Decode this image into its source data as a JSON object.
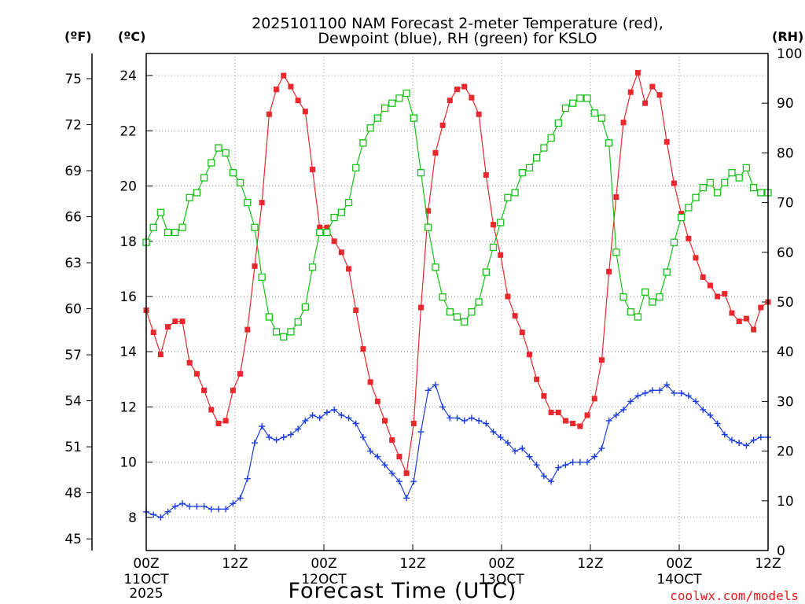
{
  "colors": {
    "temperature": "#e8282c",
    "dewpoint": "#1f3fdf",
    "rh": "#18c018",
    "grid": "#9a9a9a",
    "credit": "#e31a1c"
  },
  "chart_data": {
    "type": "line",
    "title_line1": "2025101100 NAM Forecast 2-meter Temperature (red),",
    "title_line2": "Dewpoint (blue), RH (green) for KSLO",
    "xlabel": "Forecast Time (UTC)",
    "credit": "coolwx.com/models",
    "units": {
      "f": "(ºF)",
      "c": "(ºC)",
      "rh": "(RH)"
    },
    "x_hours_range": [
      0,
      84
    ],
    "x_ticks": [
      {
        "hour": 0,
        "label": "00Z",
        "sub1": "11OCT",
        "sub2": "2025"
      },
      {
        "hour": 12,
        "label": "12Z",
        "sub1": "",
        "sub2": ""
      },
      {
        "hour": 24,
        "label": "00Z",
        "sub1": "12OCT",
        "sub2": ""
      },
      {
        "hour": 36,
        "label": "12Z",
        "sub1": "",
        "sub2": ""
      },
      {
        "hour": 48,
        "label": "00Z",
        "sub1": "13OCT",
        "sub2": ""
      },
      {
        "hour": 60,
        "label": "12Z",
        "sub1": "",
        "sub2": ""
      },
      {
        "hour": 72,
        "label": "00Z",
        "sub1": "14OCT",
        "sub2": ""
      },
      {
        "hour": 84,
        "label": "12Z",
        "sub1": "",
        "sub2": ""
      }
    ],
    "y_celsius_range": [
      6.8,
      24.8
    ],
    "y_celsius_ticks": [
      "8",
      "10",
      "12",
      "14",
      "16",
      "18",
      "20",
      "22",
      "24"
    ],
    "y_fahrenheit_ticks": [
      "45",
      "48",
      "51",
      "54",
      "57",
      "60",
      "63",
      "66",
      "69",
      "72",
      "75"
    ],
    "y_rh_range": [
      0,
      100
    ],
    "y_rh_ticks": [
      "0",
      "10",
      "20",
      "30",
      "40",
      "50",
      "60",
      "70",
      "80",
      "90",
      "100"
    ],
    "series": [
      {
        "name": "Temperature (°C)",
        "color": "#e8282c",
        "marker": "filled-square",
        "values": [
          15.5,
          14.7,
          13.9,
          14.9,
          15.1,
          15.1,
          13.6,
          13.2,
          12.6,
          11.9,
          11.4,
          11.5,
          12.6,
          13.2,
          14.8,
          17.1,
          19.4,
          22.6,
          23.5,
          24.0,
          23.6,
          23.1,
          22.7,
          20.6,
          18.5,
          18.5,
          18.0,
          17.6,
          17.0,
          15.5,
          14.1,
          12.9,
          12.2,
          11.5,
          10.8,
          10.2,
          9.6,
          11.4,
          15.6,
          19.1,
          21.2,
          22.2,
          23.1,
          23.5,
          23.6,
          23.2,
          22.6,
          20.4,
          18.6,
          17.5,
          16.0,
          15.3,
          14.7,
          13.9,
          13.0,
          12.4,
          11.8,
          11.8,
          11.5,
          11.4,
          11.3,
          11.7,
          12.3,
          13.7,
          16.9,
          19.6,
          22.3,
          23.4,
          24.1,
          23.0,
          23.6,
          23.3,
          21.6,
          20.1,
          19.0,
          18.1,
          17.4,
          16.7,
          16.4,
          16.0,
          16.1,
          15.4,
          15.1,
          15.2,
          14.8,
          15.6,
          15.8
        ]
      },
      {
        "name": "Dewpoint (°C)",
        "color": "#1f3fdf",
        "marker": "plus",
        "values": [
          8.2,
          8.1,
          8.0,
          8.2,
          8.4,
          8.5,
          8.4,
          8.4,
          8.4,
          8.3,
          8.3,
          8.3,
          8.5,
          8.7,
          9.4,
          10.7,
          11.3,
          10.9,
          10.8,
          10.9,
          11.0,
          11.2,
          11.5,
          11.7,
          11.6,
          11.8,
          11.9,
          11.7,
          11.6,
          11.4,
          10.9,
          10.4,
          10.2,
          9.9,
          9.6,
          9.3,
          8.7,
          9.3,
          11.1,
          12.6,
          12.8,
          12.0,
          11.6,
          11.6,
          11.5,
          11.6,
          11.5,
          11.4,
          11.1,
          10.9,
          10.7,
          10.4,
          10.5,
          10.2,
          9.9,
          9.5,
          9.3,
          9.8,
          9.9,
          10.0,
          10.0,
          10.0,
          10.2,
          10.5,
          11.5,
          11.7,
          11.9,
          12.2,
          12.4,
          12.5,
          12.6,
          12.6,
          12.8,
          12.5,
          12.5,
          12.4,
          12.2,
          11.9,
          11.7,
          11.4,
          11.0,
          10.8,
          10.7,
          10.6,
          10.8,
          10.9,
          10.9
        ]
      },
      {
        "name": "RH (%)",
        "color": "#18c018",
        "marker": "open-square",
        "values": [
          62,
          65,
          68,
          64,
          64,
          65,
          71,
          72,
          75,
          78,
          81,
          80,
          76,
          74,
          70,
          65,
          55,
          47,
          44,
          43,
          44,
          46,
          49,
          57,
          64,
          64,
          67,
          68,
          70,
          77,
          82,
          85,
          87,
          89,
          90,
          91,
          92,
          87,
          76,
          65,
          57,
          51,
          48,
          47,
          46,
          48,
          50,
          56,
          61,
          66,
          71,
          72,
          76,
          77,
          79,
          81,
          83,
          86,
          89,
          90,
          91,
          91,
          88,
          87,
          82,
          60,
          51,
          48,
          47,
          52,
          50,
          51,
          56,
          62,
          67,
          69,
          71,
          73,
          74,
          72,
          74,
          76,
          75,
          77,
          73,
          72,
          72
        ]
      }
    ]
  }
}
